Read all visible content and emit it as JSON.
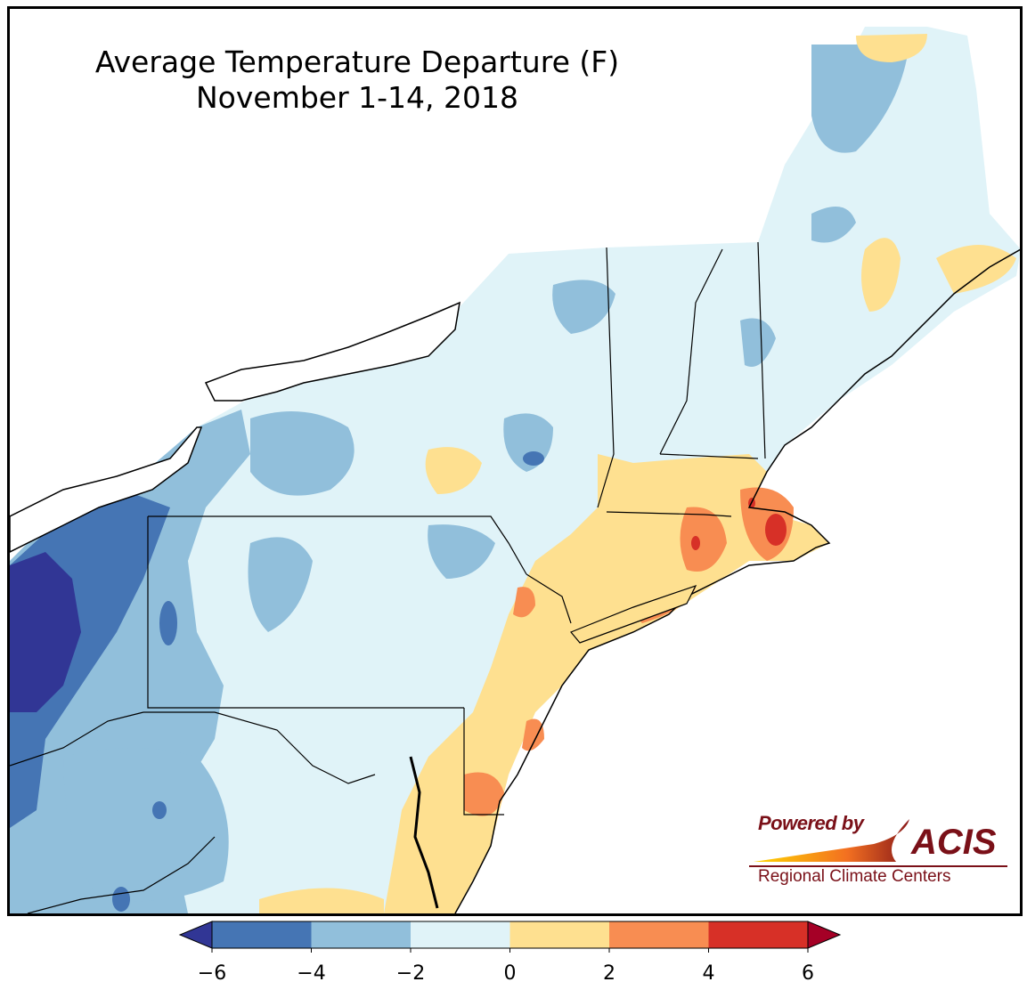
{
  "title": {
    "line1": "Average Temperature Departure (F)",
    "line2": "November 1-14, 2018"
  },
  "branding": {
    "powered_by": "Powered by",
    "acis": "ACIS",
    "regional_centers": "Regional Climate Centers"
  },
  "colorbar": {
    "ticks": [
      "−6",
      "−4",
      "−2",
      "0",
      "2",
      "4",
      "6"
    ],
    "bins": [
      {
        "range": "< -6",
        "color": "#313695"
      },
      {
        "range": "-6 to -4",
        "color": "#4575b4"
      },
      {
        "range": "-4 to -2",
        "color": "#91bfdb"
      },
      {
        "range": "-2 to 0",
        "color": "#e0f3f8"
      },
      {
        "range": "0 to 2",
        "color": "#fee090"
      },
      {
        "range": "2 to 4",
        "color": "#f88d52"
      },
      {
        "range": "4 to 6",
        "color": "#d73027"
      },
      {
        "range": "> 6",
        "color": "#a50026"
      }
    ]
  },
  "colors": {
    "ocean": "#ffffff",
    "lake": "#ffffff",
    "boundary": "#000000",
    "county": "#9a9a9a"
  }
}
